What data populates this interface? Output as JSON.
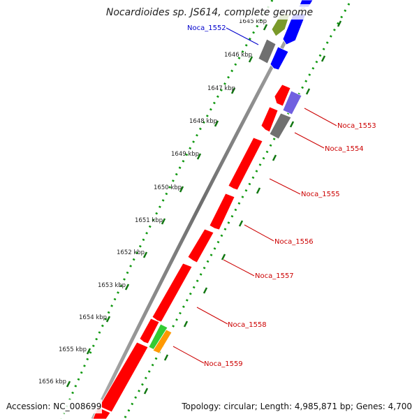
{
  "title": "Nocardioides sp. JS614, complete genome",
  "footer": {
    "accession": "Accession: NC_008699",
    "topology": "Topology: circular; Length: 4,985,871 bp; Genes: 4,700"
  },
  "kbp_labels": [
    "1645 kbp",
    "1646 kbp",
    "1647 kbp",
    "1648 kbp",
    "1649 kbp",
    "1650 kbp",
    "1651 kbp",
    "1652 kbp",
    "1653 kbp",
    "1654 kbp",
    "1655 kbp",
    "1656 kbp"
  ],
  "gene_labels": [
    {
      "text": "Noca_1552",
      "color": "#0000cc"
    },
    {
      "text": "Noca_1553",
      "color": "#cc0000"
    },
    {
      "text": "Noca_1554",
      "color": "#cc0000"
    },
    {
      "text": "Noca_1555",
      "color": "#cc0000"
    },
    {
      "text": "Noca_1556",
      "color": "#cc0000"
    },
    {
      "text": "Noca_1557",
      "color": "#cc0000"
    },
    {
      "text": "Noca_1558",
      "color": "#cc0000"
    },
    {
      "text": "Noca_1559",
      "color": "#cc0000"
    }
  ],
  "colors": {
    "gene_red": "#ff0000",
    "gene_blue": "#0000ff",
    "gene_gray": "#707070",
    "gene_olive": "#7a9a2a",
    "gene_purple": "#7060e0",
    "gene_green": "#33cc33",
    "gene_orange": "#ff9900",
    "backbone": "#8c8c8c",
    "tick_green": "#117711"
  }
}
